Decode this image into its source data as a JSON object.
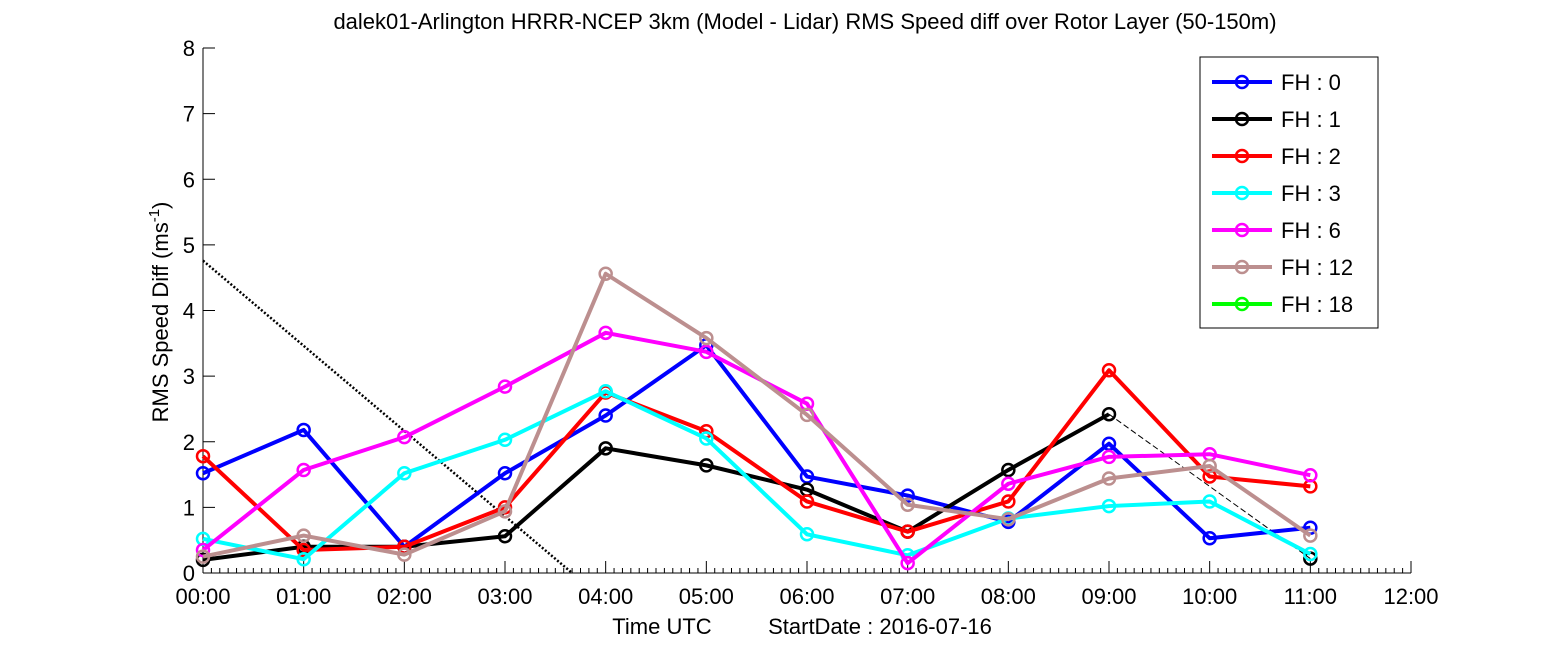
{
  "chart_data": {
    "type": "line",
    "title": "dalek01-Arlington HRRR-NCEP 3km (Model - Lidar) RMS Speed diff over Rotor Layer (50-150m)",
    "xlabel": "Time UTC",
    "start_date_label": "StartDate : 2016-07-16",
    "ylabel": "RMS Speed Diff (ms",
    "ylabel_sup": "-1",
    "ylabel_close": ")",
    "ylim": [
      0,
      8
    ],
    "yticks": [
      "0",
      "1",
      "2",
      "3",
      "4",
      "5",
      "6",
      "7",
      "8"
    ],
    "xlim": [
      "00:00",
      "12:00"
    ],
    "xticks": [
      "00:00",
      "01:00",
      "02:00",
      "03:00",
      "04:00",
      "05:00",
      "06:00",
      "07:00",
      "08:00",
      "09:00",
      "10:00",
      "11:00",
      "12:00"
    ],
    "x": [
      "00:00",
      "01:00",
      "02:00",
      "03:00",
      "04:00",
      "05:00",
      "06:00",
      "07:00",
      "08:00",
      "09:00",
      "10:00",
      "11:00"
    ],
    "legend_position": "top-right",
    "series": [
      {
        "name": "FH : 0",
        "color": "#0000ff",
        "values": [
          1.52,
          2.18,
          0.4,
          1.52,
          2.4,
          3.47,
          1.47,
          1.18,
          0.78,
          1.97,
          0.53,
          0.69
        ]
      },
      {
        "name": "FH : 1",
        "color": "#000000",
        "values": [
          0.2,
          0.4,
          0.4,
          0.56,
          1.9,
          1.64,
          1.27,
          0.63,
          1.57,
          2.42,
          null,
          0.22
        ]
      },
      {
        "name": "FH : 2",
        "color": "#ff0000",
        "values": [
          1.78,
          0.35,
          0.4,
          1.0,
          2.75,
          2.16,
          1.09,
          0.63,
          1.09,
          3.09,
          1.47,
          1.32
        ]
      },
      {
        "name": "FH : 3",
        "color": "#00ffff",
        "values": [
          0.52,
          0.21,
          1.52,
          2.03,
          2.77,
          2.05,
          0.59,
          0.27,
          0.83,
          1.02,
          1.09,
          0.29
        ]
      },
      {
        "name": "FH : 6",
        "color": "#ff00ff",
        "values": [
          0.35,
          1.57,
          2.07,
          2.84,
          3.66,
          3.37,
          2.58,
          0.15,
          1.36,
          1.77,
          1.81,
          1.49
        ]
      },
      {
        "name": "FH : 12",
        "color": "#bc8f8f",
        "values": [
          0.25,
          0.57,
          0.28,
          0.94,
          4.56,
          3.58,
          2.41,
          1.04,
          0.82,
          1.44,
          1.63,
          0.57
        ]
      },
      {
        "name": "FH : 18",
        "color": "#00ff00",
        "values": [
          null,
          null,
          null,
          null,
          null,
          null,
          null,
          null,
          null,
          null,
          null,
          null
        ]
      }
    ],
    "extra_lines": [
      {
        "style": "dotted",
        "color": "#000000",
        "x": [
          "00:00",
          "03:40"
        ],
        "y": [
          4.76,
          0.0
        ]
      },
      {
        "style": "thin-dashed",
        "color": "#000000",
        "x": [
          "09:00",
          "11:00"
        ],
        "y": [
          2.42,
          0.22
        ]
      }
    ]
  }
}
